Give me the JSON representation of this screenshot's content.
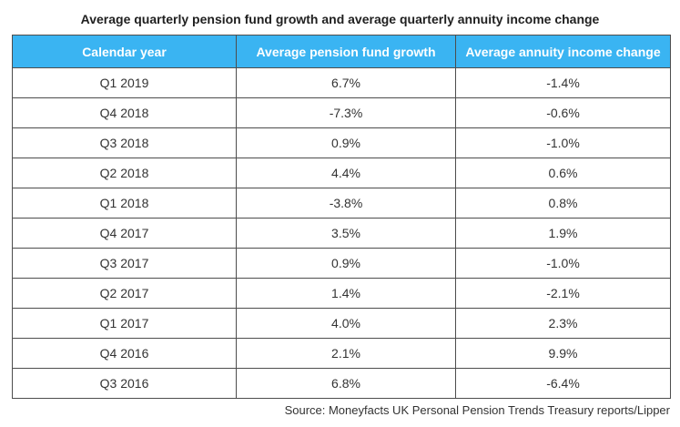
{
  "title": "Average quarterly pension fund growth and average quarterly annuity income change",
  "table": {
    "columns": [
      "Calendar year",
      "Average pension fund growth",
      "Average annuity income change"
    ],
    "rows": [
      [
        "Q1 2019",
        "6.7%",
        "-1.4%"
      ],
      [
        "Q4 2018",
        "-7.3%",
        "-0.6%"
      ],
      [
        "Q3 2018",
        "0.9%",
        "-1.0%"
      ],
      [
        "Q2 2018",
        "4.4%",
        "0.6%"
      ],
      [
        "Q1 2018",
        "-3.8%",
        "0.8%"
      ],
      [
        "Q4 2017",
        "3.5%",
        "1.9%"
      ],
      [
        "Q3 2017",
        "0.9%",
        "-1.0%"
      ],
      [
        "Q2 2017",
        "1.4%",
        "-2.1%"
      ],
      [
        "Q1 2017",
        "4.0%",
        "2.3%"
      ],
      [
        "Q4 2016",
        "2.1%",
        "9.9%"
      ],
      [
        "Q3 2016",
        "6.8%",
        "-6.4%"
      ]
    ]
  },
  "source": "Source: Moneyfacts UK Personal Pension Trends Treasury reports/Lipper",
  "colors": {
    "header_bg": "#3ab4f2",
    "header_text": "#ffffff",
    "border": "#4d4d4d",
    "text": "#333333",
    "title_text": "#1f1f1f",
    "page_bg": "#ffffff"
  },
  "chart_data": {
    "type": "table",
    "title": "Average quarterly pension fund growth and average quarterly annuity income change",
    "columns": [
      "Calendar year",
      "Average pension fund growth",
      "Average annuity income change"
    ],
    "units": "%",
    "rows": [
      [
        "Q1 2019",
        6.7,
        -1.4
      ],
      [
        "Q4 2018",
        -7.3,
        -0.6
      ],
      [
        "Q3 2018",
        0.9,
        -1.0
      ],
      [
        "Q2 2018",
        4.4,
        0.6
      ],
      [
        "Q1 2018",
        -3.8,
        0.8
      ],
      [
        "Q4 2017",
        3.5,
        1.9
      ],
      [
        "Q3 2017",
        0.9,
        -1.0
      ],
      [
        "Q2 2017",
        1.4,
        -2.1
      ],
      [
        "Q1 2017",
        4.0,
        2.3
      ],
      [
        "Q4 2016",
        2.1,
        9.9
      ],
      [
        "Q3 2016",
        6.8,
        -6.4
      ]
    ],
    "source": "Source: Moneyfacts UK Personal Pension Trends Treasury reports/Lipper",
    "layout": {
      "header_fill": "#3ab4f2",
      "grid": true,
      "value_alignment": "center"
    }
  }
}
